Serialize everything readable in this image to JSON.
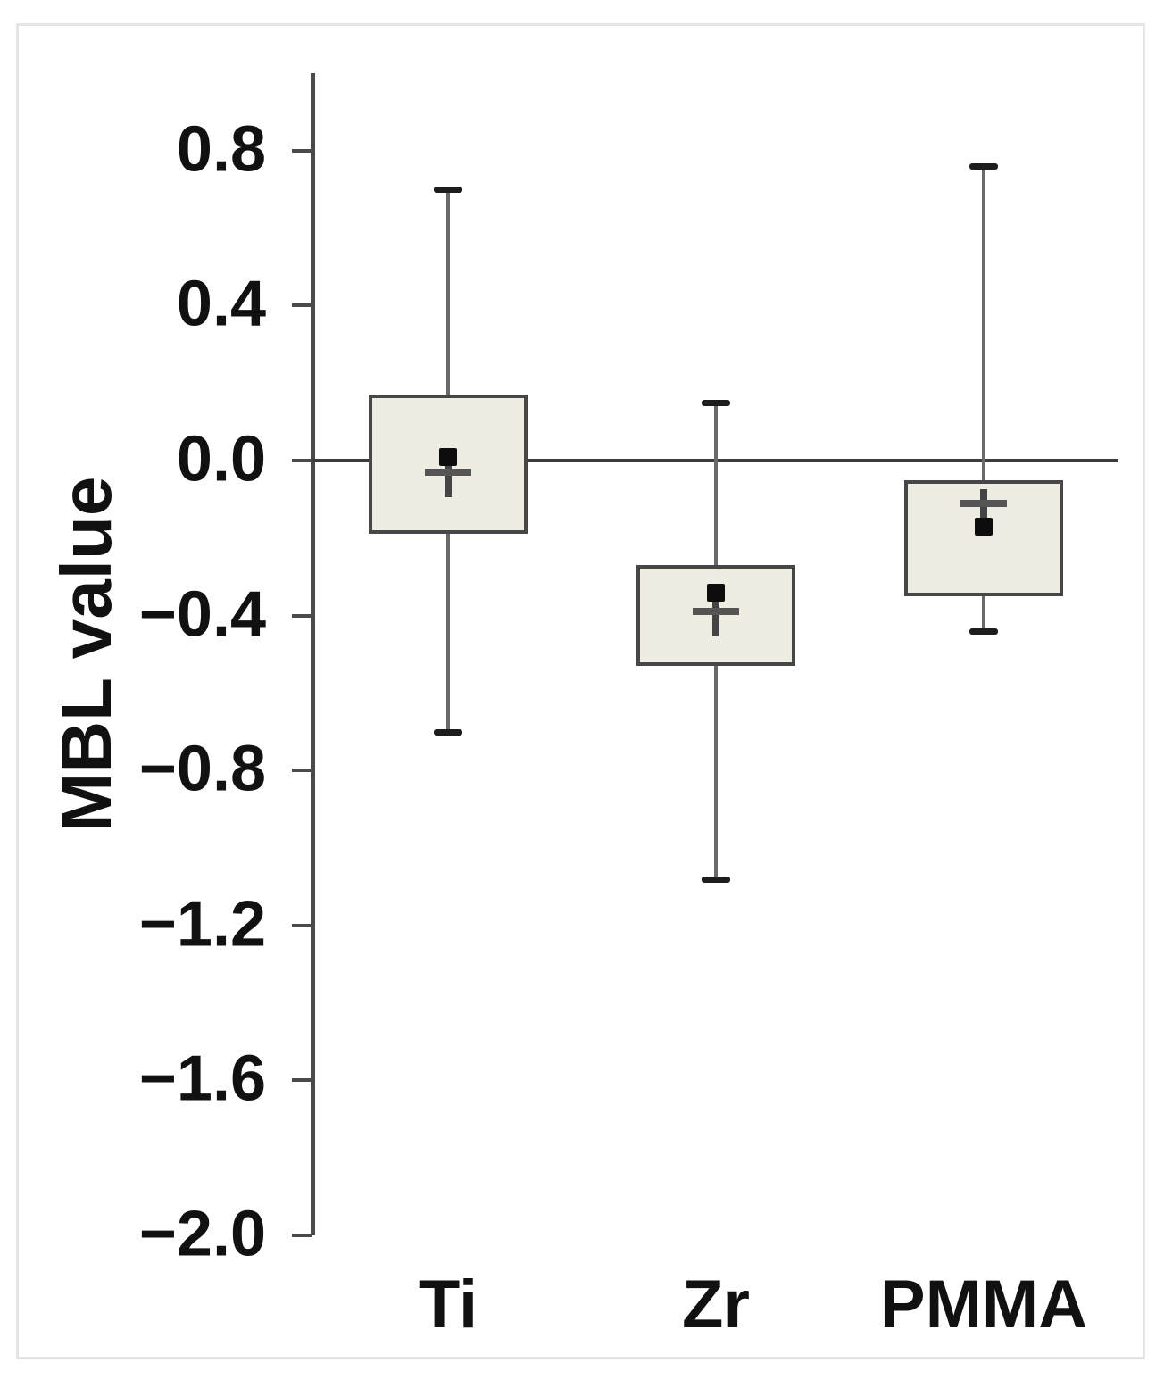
{
  "figure": {
    "title": "",
    "ylabel": "MBL value"
  },
  "chart_data": {
    "type": "box",
    "title": "",
    "xlabel": "",
    "ylabel": "MBL value",
    "categories": [
      "Ti",
      "Zr",
      "PMMA"
    ],
    "ylim": [
      -2.0,
      1.0
    ],
    "yticks": [
      0.8,
      0.4,
      0.0,
      -0.4,
      -0.8,
      -1.2,
      -1.6,
      -2.0
    ],
    "ytick_labels": [
      "0.8",
      "0.4",
      "0.0",
      "−0.4",
      "−0.8",
      "−1.2",
      "−1.6",
      "−2.0"
    ],
    "grid": false,
    "legend": "none",
    "reference_line_y": 0.0,
    "marker_legend": {
      "mean_marker": "filled-square",
      "median_marker": "plus"
    },
    "series": [
      {
        "name": "Ti",
        "whisker_low": -0.7,
        "q1": -0.19,
        "median": -0.03,
        "mean": 0.01,
        "q3": 0.17,
        "whisker_high": 0.7
      },
      {
        "name": "Zr",
        "whisker_low": -1.08,
        "q1": -0.53,
        "median": -0.39,
        "mean": -0.34,
        "q3": -0.27,
        "whisker_high": 0.15
      },
      {
        "name": "PMMA",
        "whisker_low": -0.44,
        "q1": -0.35,
        "median": -0.11,
        "mean": -0.17,
        "q3": -0.05,
        "whisker_high": 0.76
      }
    ],
    "colors": {
      "box_fill": "#efede2",
      "box_border": "#474747",
      "whisker": "#6a6a6a",
      "cap": "#1d1d1d",
      "mean_marker": "#0d0d0d",
      "median_marker": "#555555",
      "axis": "#4a4a4a",
      "zero_line": "#3c3c3c",
      "frame_border": "#e5e5e5",
      "text": "#111111"
    }
  }
}
